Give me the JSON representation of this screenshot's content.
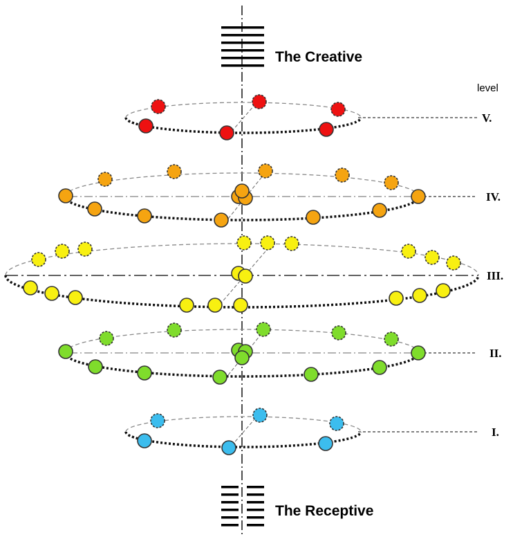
{
  "title_top": "The Creative",
  "title_bottom": "The Receptive",
  "level_heading": "level",
  "levels": [
    {
      "id": "V",
      "label": "V.",
      "color": "#ee1111"
    },
    {
      "id": "IV",
      "label": "IV.",
      "color": "#f5a411"
    },
    {
      "id": "III",
      "label": "III.",
      "color": "#f8f011"
    },
    {
      "id": "II",
      "label": "II.",
      "color": "#7fdc2c"
    },
    {
      "id": "I",
      "label": "I.",
      "color": "#3cbdee"
    }
  ],
  "colors": {
    "line": "#000000",
    "dash": "#888888",
    "circle_stroke": "#333333"
  },
  "icons": {
    "creative": "hexagram-solid-lines-icon",
    "receptive": "hexagram-broken-lines-icon"
  }
}
